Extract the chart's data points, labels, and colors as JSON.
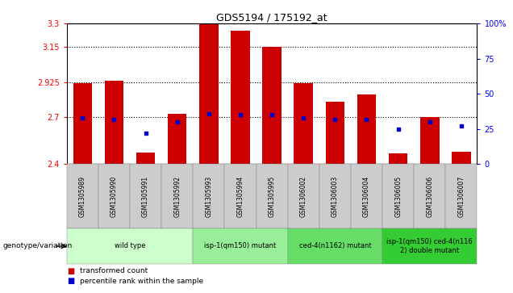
{
  "title": "GDS5194 / 175192_at",
  "samples": [
    "GSM1305989",
    "GSM1305990",
    "GSM1305991",
    "GSM1305992",
    "GSM1305993",
    "GSM1305994",
    "GSM1305995",
    "GSM1306002",
    "GSM1306003",
    "GSM1306004",
    "GSM1306005",
    "GSM1306006",
    "GSM1306007"
  ],
  "bar_values": [
    2.92,
    2.935,
    2.475,
    2.72,
    3.3,
    3.255,
    3.148,
    2.92,
    2.8,
    2.845,
    2.47,
    2.7,
    2.48
  ],
  "percentile_values": [
    33,
    32,
    22,
    30,
    36,
    35,
    35,
    33,
    32,
    32,
    25,
    30,
    27
  ],
  "ymin": 2.4,
  "ymax": 3.3,
  "y2min": 0,
  "y2max": 100,
  "yticks": [
    2.4,
    2.7,
    2.925,
    3.15,
    3.3
  ],
  "ytick_labels": [
    "2.4",
    "2.7",
    "2.925",
    "3.15",
    "3.3"
  ],
  "y2ticks": [
    0,
    25,
    50,
    75,
    100
  ],
  "y2tick_labels": [
    "0",
    "25",
    "50",
    "75",
    "100%"
  ],
  "hlines": [
    2.7,
    2.925,
    3.15
  ],
  "bar_color": "#cc0000",
  "dot_color": "#0000cc",
  "bar_width": 0.6,
  "groups": [
    {
      "label": "wild type",
      "start": 0,
      "end": 3,
      "color": "#ccffcc"
    },
    {
      "label": "isp-1(qm150) mutant",
      "start": 4,
      "end": 6,
      "color": "#99ee99"
    },
    {
      "label": "ced-4(n1162) mutant",
      "start": 7,
      "end": 9,
      "color": "#66dd66"
    },
    {
      "label": "isp-1(qm150) ced-4(n116\n2) double mutant",
      "start": 10,
      "end": 12,
      "color": "#33cc33"
    }
  ],
  "xtick_bg_color": "#cccccc",
  "background_color": "#ffffff",
  "legend_items": [
    {
      "label": "transformed count",
      "color": "#cc0000"
    },
    {
      "label": "percentile rank within the sample",
      "color": "#0000cc"
    }
  ],
  "genotype_label": "genotype/variation"
}
